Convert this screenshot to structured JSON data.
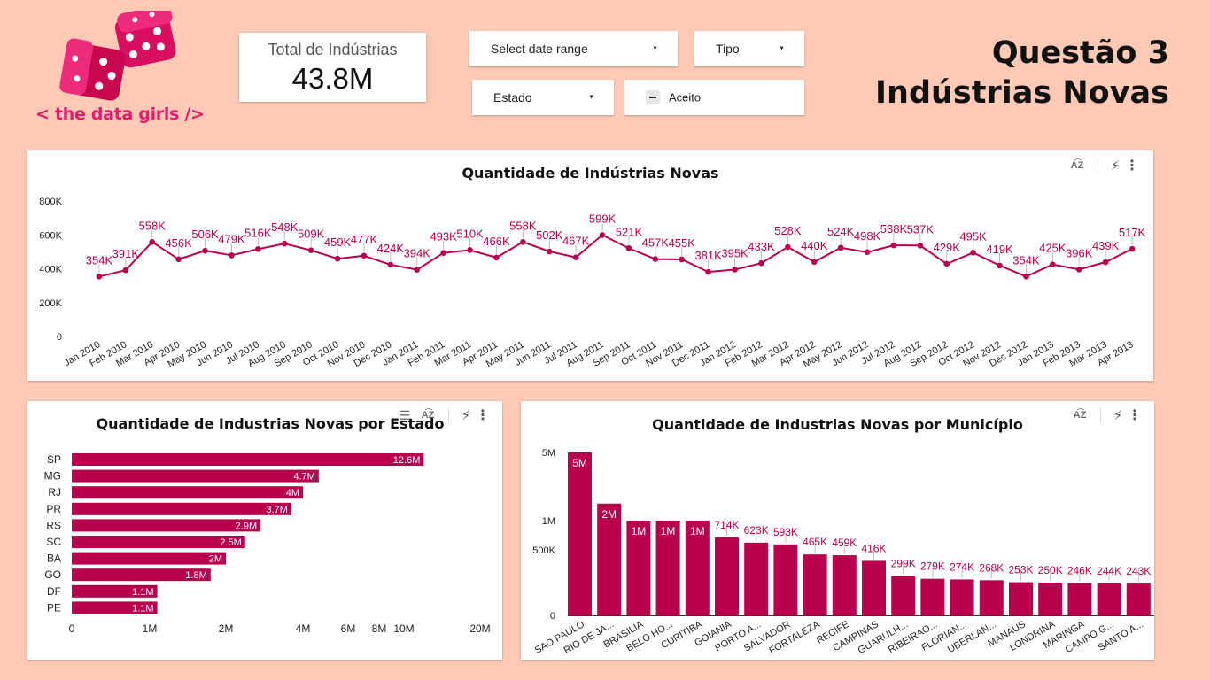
{
  "logo": {
    "text": "< the data girls />",
    "alt": "dice-logo"
  },
  "scorecard": {
    "label": "Total de Indústrias",
    "value": "43.8M"
  },
  "controls": {
    "date_range": "Select date range",
    "tipo": "Tipo",
    "estado": "Estado",
    "aceito": "Aceito"
  },
  "header": {
    "line1": "Questão 3",
    "line2": "Indústrias Novas"
  },
  "colors": {
    "accent": "#b8004f",
    "label": "#b8004f",
    "background": "#fecab5",
    "logo_pink": "#e5196e"
  },
  "icons": [
    "sort-az-icon",
    "bolt-icon",
    "more-vert-icon",
    "tune-icon"
  ],
  "charts": {
    "time_title": "Quantidade de Indústrias Novas",
    "estado_title": "Quantidade de Industrias Novas por Estado",
    "mun_title": "Quantidade de Industrias Novas por Município"
  },
  "chart_data": [
    {
      "type": "line",
      "title": "Quantidade de Indústrias Novas",
      "x": [
        "Jan 2010",
        "Feb 2010",
        "Mar 2010",
        "Apr 2010",
        "May 2010",
        "Jun 2010",
        "Jul 2010",
        "Aug 2010",
        "Sep 2010",
        "Oct 2010",
        "Nov 2010",
        "Dec 2010",
        "Jan 2011",
        "Feb 2011",
        "Mar 2011",
        "Apr 2011",
        "May 2011",
        "Jun 2011",
        "Jul 2011",
        "Aug 2011",
        "Sep 2011",
        "Oct 2011",
        "Nov 2011",
        "Dec 2011",
        "Jan 2012",
        "Feb 2012",
        "Mar 2012",
        "Apr 2012",
        "May 2012",
        "Jun 2012",
        "Jul 2012",
        "Aug 2012",
        "Sep 2012",
        "Oct 2012",
        "Nov 2012",
        "Dec 2012",
        "Jan 2013",
        "Feb 2013",
        "Mar 2013",
        "Apr 2013"
      ],
      "values": [
        354000,
        391000,
        558000,
        456000,
        506000,
        479000,
        516000,
        548000,
        509000,
        459000,
        477000,
        424000,
        394000,
        493000,
        510000,
        466000,
        558000,
        502000,
        467000,
        599000,
        521000,
        457000,
        455000,
        381000,
        395000,
        433000,
        528000,
        440000,
        524000,
        498000,
        538000,
        537000,
        429000,
        495000,
        419000,
        354000,
        425000,
        396000,
        439000,
        517000
      ],
      "labels": [
        "354K",
        "391K",
        "558K",
        "456K",
        "506K",
        "479K",
        "516K",
        "548K",
        "509K",
        "459K",
        "477K",
        "424K",
        "394K",
        "493K",
        "510K",
        "466K",
        "558K",
        "502K",
        "467K",
        "599K",
        "521K",
        "457K",
        "455K",
        "381K",
        "395K",
        "433K",
        "528K",
        "440K",
        "524K",
        "498K",
        "538K",
        "537K",
        "429K",
        "495K",
        "419K",
        "354K",
        "425K",
        "396K",
        "439K",
        "517K"
      ],
      "y_ticks": [
        "0",
        "200K",
        "400K",
        "600K",
        "800K"
      ],
      "ylim": [
        0,
        800000
      ],
      "grid": false
    },
    {
      "type": "bar",
      "orientation": "horizontal",
      "title": "Quantidade de Industrias Novas por Estado",
      "categories": [
        "SP",
        "MG",
        "RJ",
        "PR",
        "RS",
        "SC",
        "BA",
        "GO",
        "DF",
        "PE"
      ],
      "values": [
        12600000,
        4700000,
        4000000,
        3700000,
        2900000,
        2500000,
        2000000,
        1800000,
        1100000,
        1100000
      ],
      "labels": [
        "12.6M",
        "4.7M",
        "4M",
        "3.7M",
        "2.9M",
        "2.5M",
        "2M",
        "1.8M",
        "1.1M",
        "1.1M"
      ],
      "x_ticks": [
        "0",
        "1M",
        "2M",
        "4M",
        "6M",
        "8M",
        "10M",
        "20M"
      ],
      "x_tick_values": [
        0,
        1000000,
        2000000,
        4000000,
        6000000,
        8000000,
        10000000,
        20000000
      ],
      "scale": "log-like",
      "grid": false
    },
    {
      "type": "bar",
      "title": "Quantidade de Industrias Novas por Município",
      "categories": [
        "SAO PAULO",
        "RIO DE JA...",
        "BRASILIA",
        "BELO HO...",
        "CURITIBA",
        "GOIANIA",
        "PORTO A...",
        "SALVADOR",
        "FORTALEZA",
        "RECIFE",
        "CAMPINAS",
        "GUARULH...",
        "RIBEIRAO...",
        "FLORIAN...",
        "UBERLAN...",
        "MANAUS",
        "LONDRINA",
        "MARINGA",
        "CAMPO G...",
        "SANTO A..."
      ],
      "values": [
        5000000,
        2000000,
        1000000,
        1000000,
        1000000,
        714000,
        623000,
        593000,
        465000,
        459000,
        416000,
        299000,
        279000,
        274000,
        268000,
        253000,
        250000,
        246000,
        244000,
        243000
      ],
      "labels": [
        "5M",
        "2M",
        "1M",
        "1M",
        "1M",
        "714K",
        "623K",
        "593K",
        "465K",
        "459K",
        "416K",
        "299K",
        "279K",
        "274K",
        "268K",
        "253K",
        "250K",
        "246K",
        "244K",
        "243K"
      ],
      "y_ticks": [
        "0",
        "500K",
        "1M",
        "5M"
      ],
      "y_tick_values": [
        0,
        500000,
        1000000,
        5000000
      ],
      "scale": "log-like",
      "grid": false
    }
  ]
}
